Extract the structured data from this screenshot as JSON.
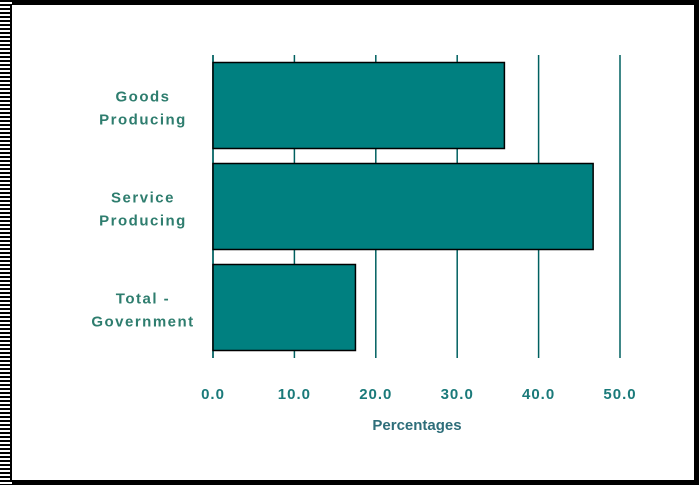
{
  "chart_data": {
    "type": "bar",
    "orientation": "horizontal",
    "categories": [
      [
        "Goods",
        "Producing"
      ],
      [
        "Service",
        "Producing"
      ],
      [
        "Total -",
        "Government"
      ]
    ],
    "values": [
      35.8,
      46.7,
      17.5
    ],
    "xlabel": "Percentages",
    "xlim": [
      0,
      50
    ],
    "xticks": [
      "0.0",
      "10.0",
      "20.0",
      "30.0",
      "40.0",
      "50.0"
    ],
    "grid": "vertical",
    "colors": {
      "bar": "#008080",
      "bar_stroke": "#000000",
      "grid": "#006060",
      "category_label": "#2e7d6e",
      "tick_label": "#1a7a7a",
      "axis_title": "#2e6e7a"
    }
  }
}
